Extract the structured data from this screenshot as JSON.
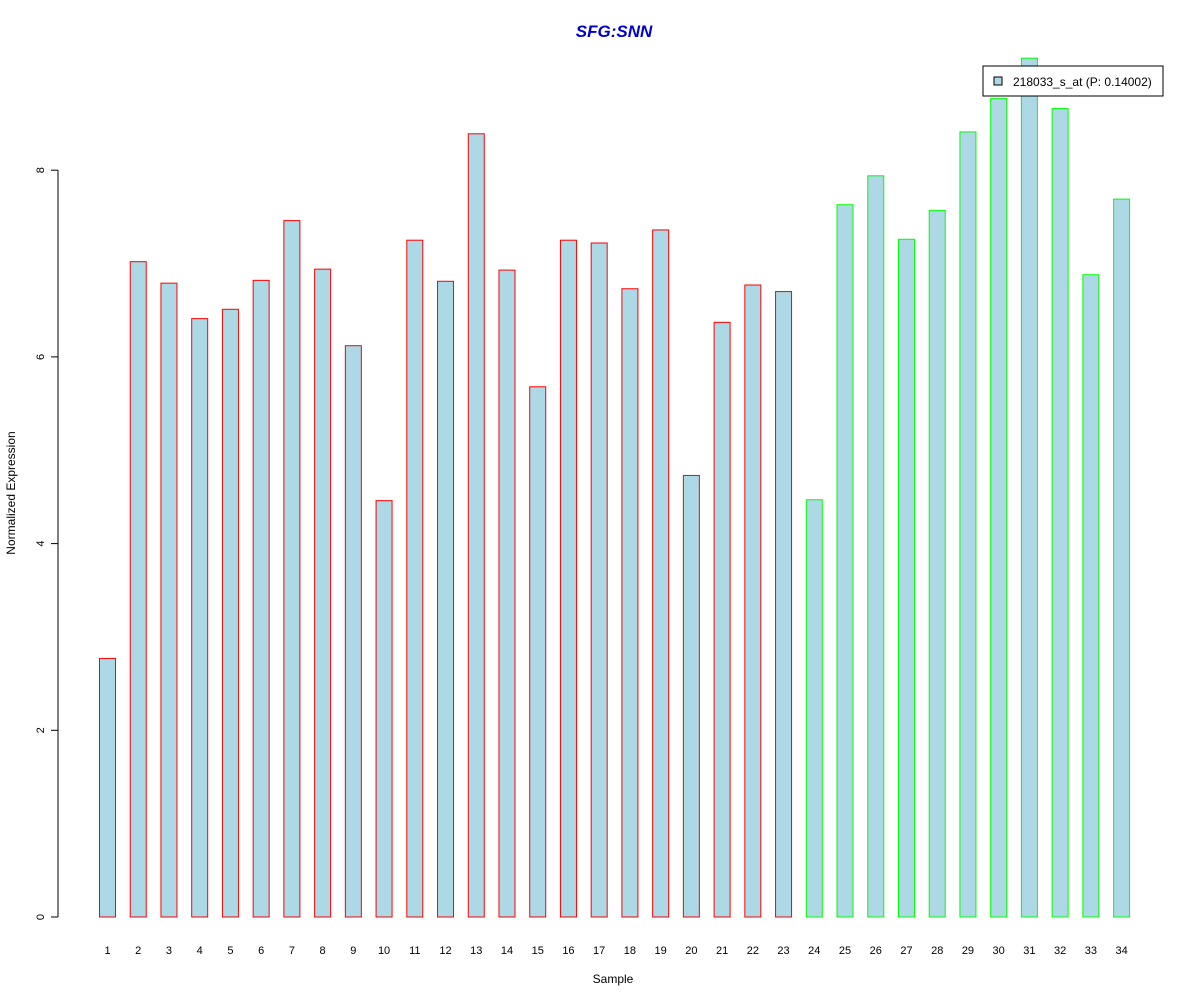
{
  "chart_data": {
    "type": "bar",
    "title": "SFG:SNN",
    "xlabel": "Sample",
    "ylabel": "Normalized Expression",
    "ylim": [
      0,
      9.2
    ],
    "yticks": [
      0,
      2,
      4,
      6,
      8
    ],
    "grid": false,
    "legend_position": "top-right",
    "categories": [
      "1",
      "2",
      "3",
      "4",
      "5",
      "6",
      "7",
      "8",
      "9",
      "10",
      "11",
      "12",
      "13",
      "14",
      "15",
      "16",
      "17",
      "18",
      "19",
      "20",
      "21",
      "22",
      "23",
      "24",
      "25",
      "26",
      "27",
      "28",
      "29",
      "30",
      "31",
      "32",
      "33",
      "34"
    ],
    "series": [
      {
        "name": "218033_s_at (P: 0.14002)",
        "fill": "#add8e6",
        "values": [
          2.77,
          7.02,
          6.79,
          6.41,
          6.51,
          6.82,
          7.46,
          6.94,
          6.12,
          4.46,
          7.25,
          6.81,
          8.39,
          6.93,
          5.68,
          7.25,
          7.22,
          6.73,
          7.36,
          4.73,
          6.37,
          6.77,
          6.7,
          4.47,
          7.63,
          7.94,
          7.26,
          7.57,
          8.41,
          8.77,
          9.2,
          8.66,
          6.88,
          7.69
        ],
        "outline_colors": [
          "#ff0000",
          "#ff0000",
          "#ff0000",
          "#ff0000",
          "#ff0000",
          "#ff0000",
          "#ff0000",
          "#ff0000",
          "#ff0000",
          "#ff0000",
          "#ff0000",
          "#ff0000",
          "#ff0000",
          "#ff0000",
          "#ff0000",
          "#ff0000",
          "#ff0000",
          "#ff0000",
          "#ff0000",
          "#ff0000",
          "#ff0000",
          "#ff0000",
          "#ff0000",
          "#00ff00",
          "#00ff00",
          "#00ff00",
          "#00ff00",
          "#00ff00",
          "#00ff00",
          "#00ff00",
          "#00ff00",
          "#00ff00",
          "#00ff00",
          "#00ff00"
        ]
      }
    ],
    "colors": {
      "title": "#0000cc",
      "text": "#000000",
      "group_a": "#ff0000",
      "group_b": "#00ff00"
    }
  }
}
